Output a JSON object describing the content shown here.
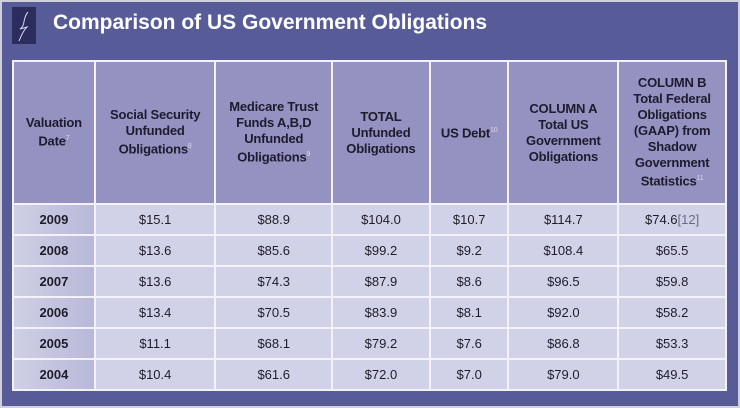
{
  "title": "Comparison of US Government Obligations",
  "headers": [
    {
      "text": "Valuation Date",
      "sup": "7"
    },
    {
      "text": "Social Security Unfunded Obligations",
      "sup": "8"
    },
    {
      "text": "Medicare Trust Funds A,B,D Unfunded Obligations",
      "sup": "9"
    },
    {
      "text": "TOTAL Unfunded Obligations",
      "sup": ""
    },
    {
      "text": "US Debt",
      "sup": "10"
    },
    {
      "text": "COLUMN A Total US Government Obligations",
      "sup": ""
    },
    {
      "text": "COLUMN B Total Federal Obligations (GAAP) from Shadow Government Statistics",
      "sup": "11"
    }
  ],
  "rows": [
    [
      "2009",
      "$15.1",
      "$88.9",
      "$104.0",
      "$10.7",
      "$114.7",
      "$74.6"
    ],
    [
      "2008",
      "$13.6",
      "$85.6",
      "$99.2",
      "$9.2",
      "$108.4",
      "$65.5"
    ],
    [
      "2007",
      "$13.6",
      "$74.3",
      "$87.9",
      "$8.6",
      "$96.5",
      "$59.8"
    ],
    [
      "2006",
      "$13.4",
      "$70.5",
      "$83.9",
      "$8.1",
      "$92.0",
      "$58.2"
    ],
    [
      "2005",
      "$11.1",
      "$68.1",
      "$79.2",
      "$7.6",
      "$86.8",
      "$53.3"
    ],
    [
      "2004",
      "$10.4",
      "$61.6",
      "$72.0",
      "$7.0",
      "$79.0",
      "$49.5"
    ]
  ],
  "ref_2009_colB": "[12]"
}
